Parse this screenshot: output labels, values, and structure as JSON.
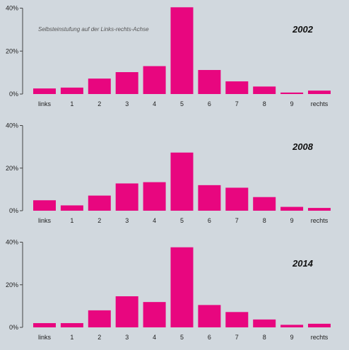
{
  "chart_data": [
    {
      "type": "bar",
      "title": "2002",
      "annotation": "Selbsteinstufung auf der Links-rechts-Achse",
      "categories": [
        "links",
        "1",
        "2",
        "3",
        "4",
        "5",
        "6",
        "7",
        "8",
        "9",
        "rechts"
      ],
      "values": [
        2.6,
        3.0,
        7.2,
        10.2,
        13.0,
        40.4,
        11.2,
        5.9,
        3.5,
        0.7,
        1.6
      ],
      "y_tick_labels": [
        "0%",
        "20%",
        "40%"
      ],
      "y_tick_values": [
        0,
        20,
        40
      ],
      "ylim": [
        0,
        40.5
      ],
      "grid": false,
      "bar_color": "#e8067f"
    },
    {
      "type": "bar",
      "title": "2008",
      "categories": [
        "links",
        "1",
        "2",
        "3",
        "4",
        "5",
        "6",
        "7",
        "8",
        "9",
        "rechts"
      ],
      "values": [
        4.9,
        2.5,
        7.1,
        12.8,
        13.4,
        27.3,
        12.0,
        10.8,
        6.4,
        1.8,
        1.3
      ],
      "y_tick_labels": [
        "0%",
        "20%",
        "40%"
      ],
      "y_tick_values": [
        0,
        20,
        40
      ],
      "ylim": [
        0,
        40.5
      ],
      "grid": false,
      "bar_color": "#e8067f"
    },
    {
      "type": "bar",
      "title": "2014",
      "categories": [
        "links",
        "1",
        "2",
        "3",
        "4",
        "5",
        "6",
        "7",
        "8",
        "9",
        "rechts"
      ],
      "values": [
        2.0,
        2.0,
        8.0,
        14.6,
        11.9,
        37.6,
        10.5,
        7.2,
        3.7,
        1.2,
        1.7
      ],
      "y_tick_labels": [
        "0%",
        "20%",
        "40%"
      ],
      "y_tick_values": [
        0,
        20,
        40
      ],
      "ylim": [
        0,
        40.5
      ],
      "grid": false,
      "bar_color": "#e8067f"
    }
  ]
}
